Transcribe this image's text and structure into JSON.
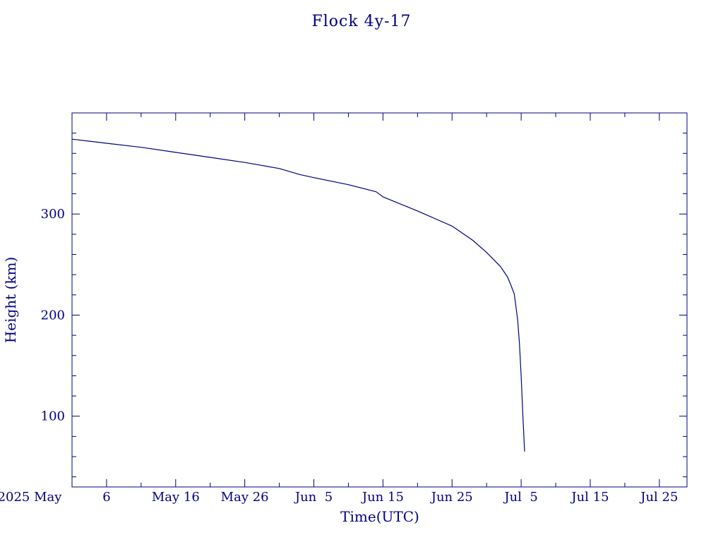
{
  "chart_data": {
    "type": "line",
    "title": "Flock 4y-17",
    "xlabel": "Time(UTC)",
    "ylabel": "Height (km)",
    "color": "#000080",
    "x_range": [
      "2025-05-01",
      "2025-07-29"
    ],
    "ylim": [
      30,
      400
    ],
    "grid": false,
    "x_tick_labels": [
      {
        "date": "2025-05-01",
        "label": "2025 May"
      },
      {
        "date": "2025-05-06",
        "label": "6"
      },
      {
        "date": "2025-05-16",
        "label": "May 16"
      },
      {
        "date": "2025-05-26",
        "label": "May 26"
      },
      {
        "date": "2025-06-05",
        "label": "Jun  5"
      },
      {
        "date": "2025-06-15",
        "label": "Jun 15"
      },
      {
        "date": "2025-06-25",
        "label": "Jun 25"
      },
      {
        "date": "2025-07-05",
        "label": "Jul  5"
      },
      {
        "date": "2025-07-15",
        "label": "Jul 15"
      },
      {
        "date": "2025-07-25",
        "label": "Jul 25"
      }
    ],
    "y_ticks": [
      100,
      200,
      300
    ],
    "series": [
      {
        "x": [
          "2025-05-01",
          "2025-05-06",
          "2025-05-11",
          "2025-05-16",
          "2025-05-21",
          "2025-05-26",
          "2025-05-31",
          "2025-06-03",
          "2025-06-05",
          "2025-06-10",
          "2025-06-14",
          "2025-06-15",
          "2025-06-20",
          "2025-06-25",
          "2025-06-28",
          "2025-06-30",
          "2025-07-02",
          "2025-07-03",
          "2025-07-03T12:00",
          "2025-07-04",
          "2025-07-04T06:00",
          "2025-07-04T12:00",
          "2025-07-04T18:00",
          "2025-07-05",
          "2025-07-05T06:00",
          "2025-07-05T12:00"
        ],
        "y": [
          374,
          370,
          366,
          361,
          356,
          351,
          345,
          339,
          336,
          329,
          322,
          317,
          303,
          288,
          274,
          262,
          248,
          238,
          230,
          221,
          208,
          195,
          172,
          140,
          100,
          65
        ]
      }
    ]
  }
}
